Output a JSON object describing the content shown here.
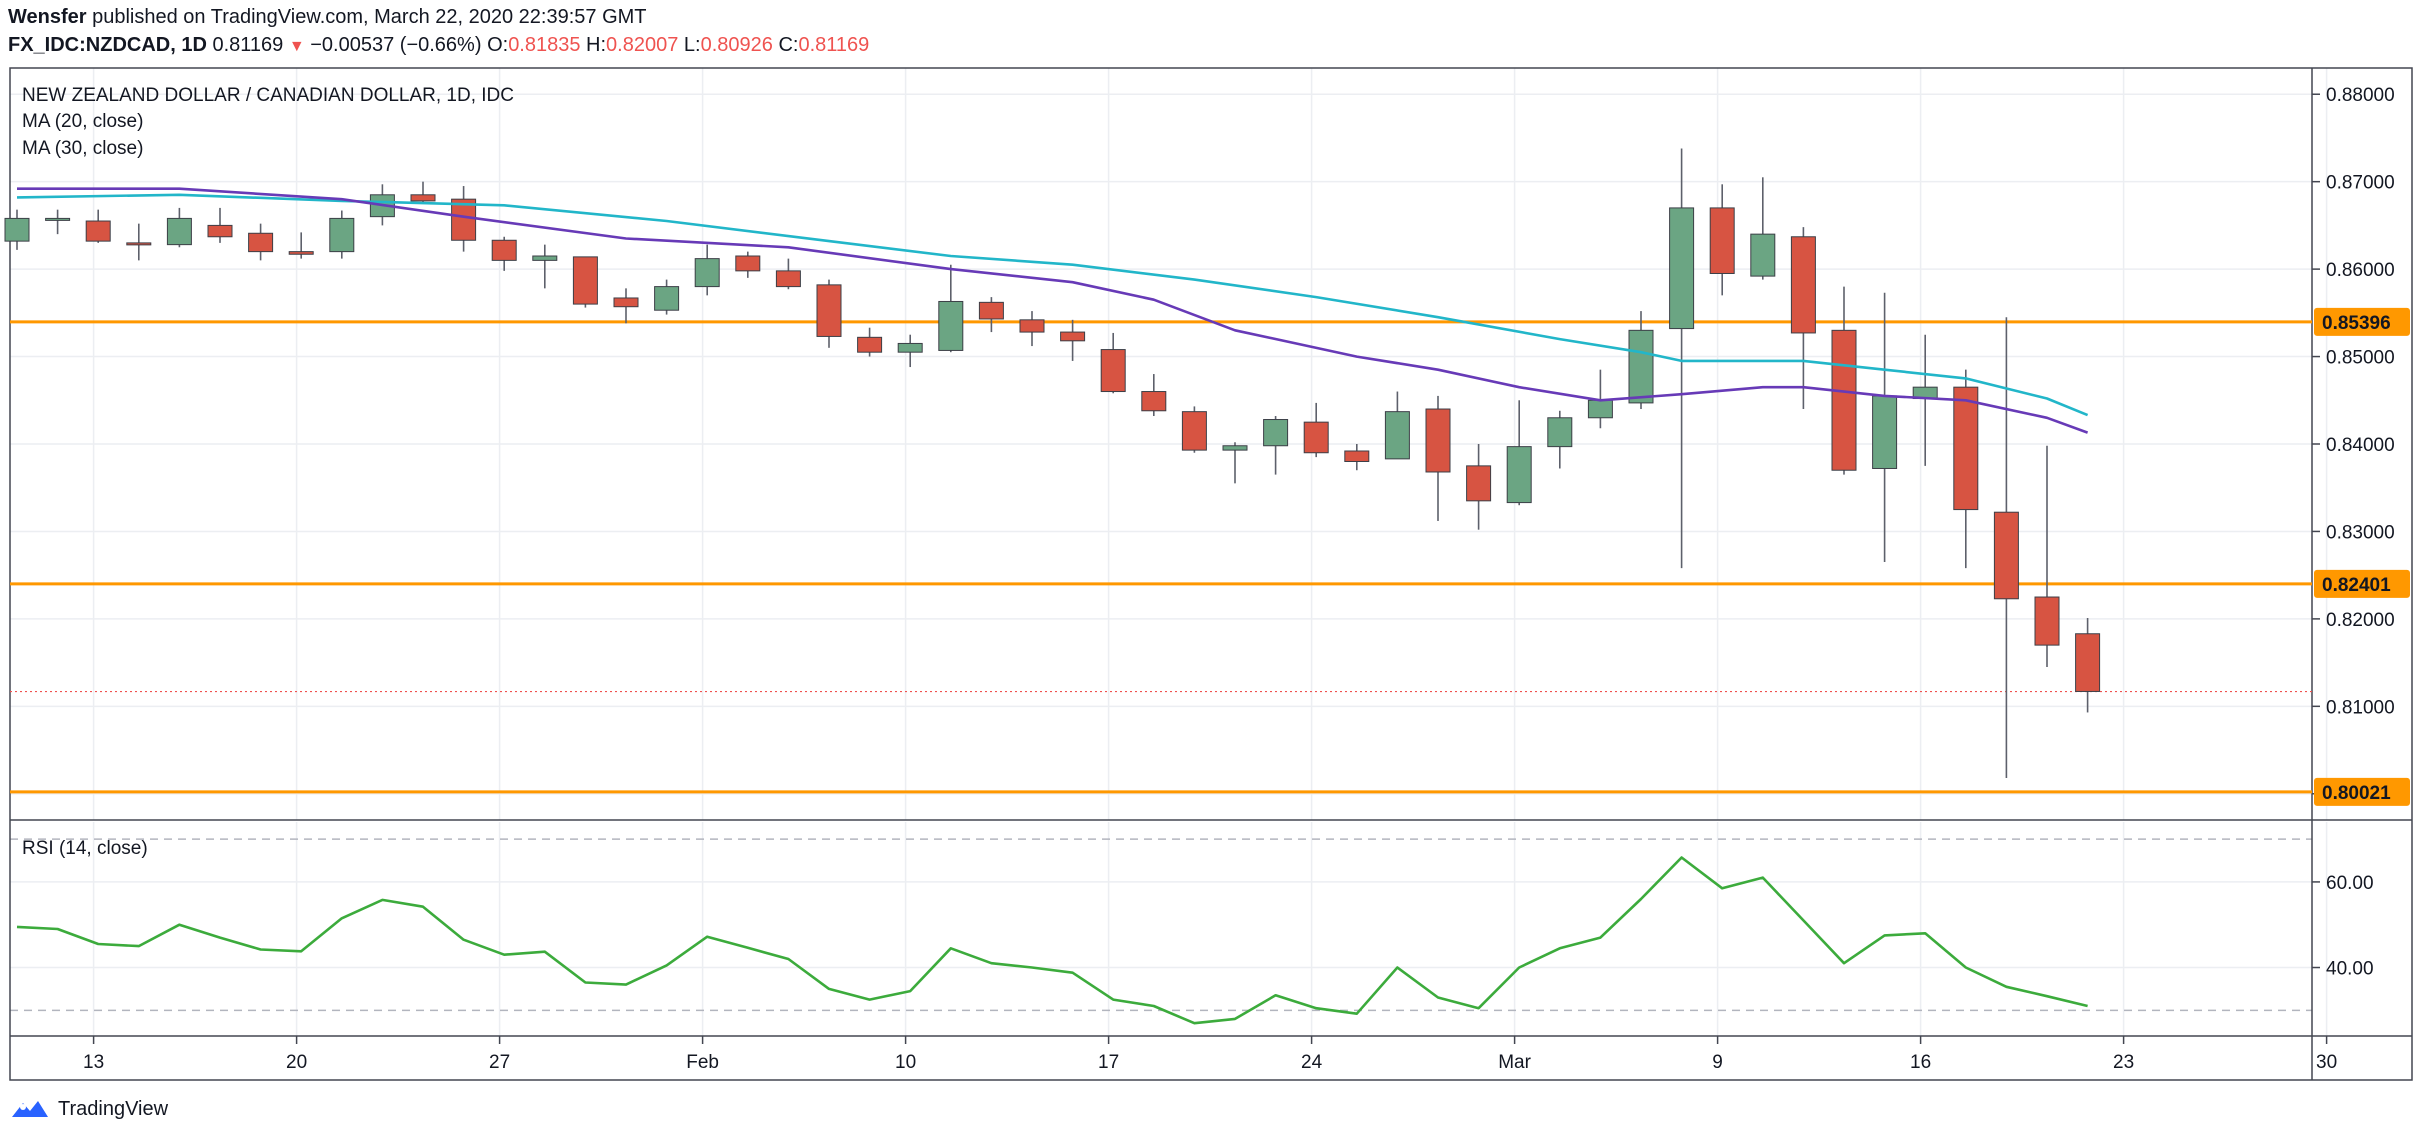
{
  "header": {
    "author": "Wensfer",
    "published_text": "published on TradingView.com, March 22, 2020 22:39:57 GMT",
    "symbol": "FX_IDC:NZDCAD, 1D",
    "last": "0.81169",
    "change": "−0.00537 (−0.66%)",
    "o_label": "O:",
    "o": "0.81835",
    "h_label": "H:",
    "h": "0.82007",
    "l_label": "L:",
    "l": "0.80926",
    "c_label": "C:",
    "c": "0.81169"
  },
  "legend": {
    "title": "NEW ZEALAND DOLLAR / CANADIAN DOLLAR, 1D, IDC",
    "ma20": "MA (20, close)",
    "ma30": "MA (30, close)",
    "rsi": "RSI (14, close)"
  },
  "footer": {
    "brand": "TradingView",
    "logo_icon": "tradingview-logo-icon"
  },
  "colors": {
    "up": "#6ba583",
    "down": "#d75442",
    "ma20": "#22b6c9",
    "ma30": "#673ab7",
    "rsi": "#3cab3c",
    "level": "#ff9800",
    "last": "#ef5350"
  },
  "chart_data": [
    {
      "type": "candlestick",
      "ylim": [
        0.797,
        0.883
      ],
      "y_ticks": [
        "0.80000",
        "0.81000",
        "0.82000",
        "0.83000",
        "0.84000",
        "0.85000",
        "0.86000",
        "0.87000",
        "0.88000"
      ],
      "x_ticks": [
        {
          "label": "13",
          "day": 1
        },
        {
          "label": "20",
          "day": 6
        },
        {
          "label": "27",
          "day": 11
        },
        {
          "label": "Feb",
          "day": 16
        },
        {
          "label": "10",
          "day": 21
        },
        {
          "label": "17",
          "day": 26
        },
        {
          "label": "24",
          "day": 31
        },
        {
          "label": "Mar",
          "day": 36
        },
        {
          "label": "9",
          "day": 41
        },
        {
          "label": "16",
          "day": 46
        },
        {
          "label": "23",
          "day": 51
        },
        {
          "label": "30",
          "day": 56
        }
      ],
      "levels": [
        {
          "value": 0.85396,
          "label": "0.85396"
        },
        {
          "value": 0.82401,
          "label": "0.82401"
        },
        {
          "value": 0.80021,
          "label": "0.80021"
        }
      ],
      "last_price": 0.81169,
      "candles": [
        {
          "d": 0,
          "o": 0.8632,
          "h": 0.8668,
          "l": 0.8622,
          "c": 0.8658
        },
        {
          "d": 1,
          "o": 0.8657,
          "h": 0.8668,
          "l": 0.864,
          "c": 0.8658
        },
        {
          "d": 2,
          "o": 0.8655,
          "h": 0.8668,
          "l": 0.863,
          "c": 0.8632
        },
        {
          "d": 3,
          "o": 0.863,
          "h": 0.8652,
          "l": 0.861,
          "c": 0.8628
        },
        {
          "d": 4,
          "o": 0.8628,
          "h": 0.867,
          "l": 0.8625,
          "c": 0.8658
        },
        {
          "d": 5,
          "o": 0.865,
          "h": 0.867,
          "l": 0.863,
          "c": 0.8637
        },
        {
          "d": 6,
          "o": 0.8641,
          "h": 0.8652,
          "l": 0.861,
          "c": 0.862
        },
        {
          "d": 7,
          "o": 0.862,
          "h": 0.8642,
          "l": 0.8612,
          "c": 0.8617
        },
        {
          "d": 8,
          "o": 0.862,
          "h": 0.8667,
          "l": 0.8612,
          "c": 0.8658
        },
        {
          "d": 9,
          "o": 0.866,
          "h": 0.8697,
          "l": 0.865,
          "c": 0.8685
        },
        {
          "d": 10,
          "o": 0.8685,
          "h": 0.87,
          "l": 0.8676,
          "c": 0.8678
        },
        {
          "d": 11,
          "o": 0.868,
          "h": 0.8695,
          "l": 0.862,
          "c": 0.8633
        },
        {
          "d": 12,
          "o": 0.8633,
          "h": 0.8637,
          "l": 0.8598,
          "c": 0.861
        },
        {
          "d": 13,
          "o": 0.861,
          "h": 0.8628,
          "l": 0.8578,
          "c": 0.8615
        },
        {
          "d": 14,
          "o": 0.8614,
          "h": 0.8614,
          "l": 0.8556,
          "c": 0.856
        },
        {
          "d": 15,
          "o": 0.8567,
          "h": 0.8578,
          "l": 0.8538,
          "c": 0.8557
        },
        {
          "d": 16,
          "o": 0.8553,
          "h": 0.8588,
          "l": 0.8548,
          "c": 0.858
        },
        {
          "d": 17,
          "o": 0.858,
          "h": 0.8628,
          "l": 0.857,
          "c": 0.8612
        },
        {
          "d": 18,
          "o": 0.8615,
          "h": 0.862,
          "l": 0.859,
          "c": 0.8598
        },
        {
          "d": 19,
          "o": 0.8598,
          "h": 0.8612,
          "l": 0.8577,
          "c": 0.858
        },
        {
          "d": 20,
          "o": 0.8582,
          "h": 0.8588,
          "l": 0.851,
          "c": 0.8523
        },
        {
          "d": 21,
          "o": 0.8522,
          "h": 0.8533,
          "l": 0.85,
          "c": 0.8505
        },
        {
          "d": 22,
          "o": 0.8505,
          "h": 0.8525,
          "l": 0.8488,
          "c": 0.8515
        },
        {
          "d": 23,
          "o": 0.8507,
          "h": 0.8605,
          "l": 0.8505,
          "c": 0.8563
        },
        {
          "d": 24,
          "o": 0.8562,
          "h": 0.8568,
          "l": 0.8528,
          "c": 0.8543
        },
        {
          "d": 25,
          "o": 0.8542,
          "h": 0.8552,
          "l": 0.8512,
          "c": 0.8528
        },
        {
          "d": 26,
          "o": 0.8528,
          "h": 0.8542,
          "l": 0.8495,
          "c": 0.8518
        },
        {
          "d": 27,
          "o": 0.8508,
          "h": 0.8527,
          "l": 0.8458,
          "c": 0.846
        },
        {
          "d": 28,
          "o": 0.846,
          "h": 0.848,
          "l": 0.8432,
          "c": 0.8438
        },
        {
          "d": 29,
          "o": 0.8437,
          "h": 0.8443,
          "l": 0.839,
          "c": 0.8393
        },
        {
          "d": 30,
          "o": 0.8393,
          "h": 0.8402,
          "l": 0.8355,
          "c": 0.8398
        },
        {
          "d": 31,
          "o": 0.8398,
          "h": 0.8432,
          "l": 0.8365,
          "c": 0.8428
        },
        {
          "d": 32,
          "o": 0.8425,
          "h": 0.8447,
          "l": 0.8385,
          "c": 0.839
        },
        {
          "d": 33,
          "o": 0.8392,
          "h": 0.84,
          "l": 0.837,
          "c": 0.838
        },
        {
          "d": 34,
          "o": 0.8383,
          "h": 0.846,
          "l": 0.8383,
          "c": 0.8437
        },
        {
          "d": 35,
          "o": 0.844,
          "h": 0.8455,
          "l": 0.8312,
          "c": 0.8368
        },
        {
          "d": 36,
          "o": 0.8375,
          "h": 0.84,
          "l": 0.8302,
          "c": 0.8335
        },
        {
          "d": 37,
          "o": 0.8333,
          "h": 0.845,
          "l": 0.833,
          "c": 0.8397
        },
        {
          "d": 38,
          "o": 0.8397,
          "h": 0.8438,
          "l": 0.8372,
          "c": 0.843
        },
        {
          "d": 39,
          "o": 0.843,
          "h": 0.8485,
          "l": 0.8418,
          "c": 0.845
        },
        {
          "d": 40,
          "o": 0.8447,
          "h": 0.8552,
          "l": 0.844,
          "c": 0.853
        },
        {
          "d": 41,
          "o": 0.8532,
          "h": 0.8738,
          "l": 0.8258,
          "c": 0.867
        },
        {
          "d": 42,
          "o": 0.867,
          "h": 0.8697,
          "l": 0.857,
          "c": 0.8595
        },
        {
          "d": 43,
          "o": 0.8592,
          "h": 0.8705,
          "l": 0.8588,
          "c": 0.864
        },
        {
          "d": 44,
          "o": 0.8637,
          "h": 0.8648,
          "l": 0.844,
          "c": 0.8527
        },
        {
          "d": 45,
          "o": 0.853,
          "h": 0.858,
          "l": 0.8365,
          "c": 0.837
        },
        {
          "d": 46,
          "o": 0.8372,
          "h": 0.8573,
          "l": 0.8265,
          "c": 0.8455
        },
        {
          "d": 47,
          "o": 0.8452,
          "h": 0.8525,
          "l": 0.8375,
          "c": 0.8465
        },
        {
          "d": 48,
          "o": 0.8465,
          "h": 0.8485,
          "l": 0.8258,
          "c": 0.8325
        },
        {
          "d": 49,
          "o": 0.8322,
          "h": 0.8545,
          "l": 0.8018,
          "c": 0.8223
        },
        {
          "d": 50,
          "o": 0.8225,
          "h": 0.8398,
          "l": 0.8145,
          "c": 0.817
        },
        {
          "d": 51,
          "o": 0.8183,
          "h": 0.8201,
          "l": 0.8093,
          "c": 0.8117
        }
      ],
      "ma20": [
        {
          "d": 0,
          "v": 0.8682
        },
        {
          "d": 4,
          "v": 0.8685
        },
        {
          "d": 8,
          "v": 0.8678
        },
        {
          "d": 12,
          "v": 0.8673
        },
        {
          "d": 16,
          "v": 0.8655
        },
        {
          "d": 20,
          "v": 0.8632
        },
        {
          "d": 23,
          "v": 0.8615
        },
        {
          "d": 26,
          "v": 0.8605
        },
        {
          "d": 29,
          "v": 0.8588
        },
        {
          "d": 32,
          "v": 0.8568
        },
        {
          "d": 35,
          "v": 0.8545
        },
        {
          "d": 38,
          "v": 0.852
        },
        {
          "d": 40,
          "v": 0.8505
        },
        {
          "d": 41,
          "v": 0.8495
        },
        {
          "d": 44,
          "v": 0.8495
        },
        {
          "d": 46,
          "v": 0.8485
        },
        {
          "d": 48,
          "v": 0.8475
        },
        {
          "d": 50,
          "v": 0.8452
        },
        {
          "d": 51,
          "v": 0.8433
        }
      ],
      "ma30": [
        {
          "d": 0,
          "v": 0.8692
        },
        {
          "d": 4,
          "v": 0.8692
        },
        {
          "d": 8,
          "v": 0.868
        },
        {
          "d": 11,
          "v": 0.866
        },
        {
          "d": 15,
          "v": 0.8635
        },
        {
          "d": 19,
          "v": 0.8625
        },
        {
          "d": 23,
          "v": 0.86
        },
        {
          "d": 26,
          "v": 0.8585
        },
        {
          "d": 28,
          "v": 0.8565
        },
        {
          "d": 30,
          "v": 0.853
        },
        {
          "d": 33,
          "v": 0.85
        },
        {
          "d": 35,
          "v": 0.8485
        },
        {
          "d": 37,
          "v": 0.8465
        },
        {
          "d": 39,
          "v": 0.845
        },
        {
          "d": 41,
          "v": 0.8457
        },
        {
          "d": 43,
          "v": 0.8465
        },
        {
          "d": 44,
          "v": 0.8465
        },
        {
          "d": 46,
          "v": 0.8455
        },
        {
          "d": 48,
          "v": 0.845
        },
        {
          "d": 50,
          "v": 0.843
        },
        {
          "d": 51,
          "v": 0.8413
        }
      ]
    },
    {
      "type": "line",
      "name": "",
      "ylim": [
        24,
        74
      ],
      "y_ticks": [
        "40.00",
        "60.00"
      ],
      "bands": [
        70,
        30
      ],
      "points": [
        {
          "d": 0,
          "v": 49.5
        },
        {
          "d": 1,
          "v": 49.0
        },
        {
          "d": 2,
          "v": 45.5
        },
        {
          "d": 3,
          "v": 45.0
        },
        {
          "d": 4,
          "v": 50.0
        },
        {
          "d": 5,
          "v": 47.0
        },
        {
          "d": 6,
          "v": 44.2
        },
        {
          "d": 7,
          "v": 43.8
        },
        {
          "d": 8,
          "v": 51.5
        },
        {
          "d": 9,
          "v": 55.8
        },
        {
          "d": 10,
          "v": 54.2
        },
        {
          "d": 11,
          "v": 46.5
        },
        {
          "d": 12,
          "v": 43.0
        },
        {
          "d": 13,
          "v": 43.7
        },
        {
          "d": 14,
          "v": 36.5
        },
        {
          "d": 15,
          "v": 36.0
        },
        {
          "d": 16,
          "v": 40.5
        },
        {
          "d": 17,
          "v": 47.2
        },
        {
          "d": 18,
          "v": 44.6
        },
        {
          "d": 19,
          "v": 42.0
        },
        {
          "d": 20,
          "v": 35.0
        },
        {
          "d": 21,
          "v": 32.5
        },
        {
          "d": 22,
          "v": 34.5
        },
        {
          "d": 23,
          "v": 44.5
        },
        {
          "d": 24,
          "v": 41.0
        },
        {
          "d": 25,
          "v": 40.0
        },
        {
          "d": 26,
          "v": 38.8
        },
        {
          "d": 27,
          "v": 32.5
        },
        {
          "d": 28,
          "v": 31.0
        },
        {
          "d": 29,
          "v": 27.0
        },
        {
          "d": 30,
          "v": 28.0
        },
        {
          "d": 31,
          "v": 33.5
        },
        {
          "d": 32,
          "v": 30.5
        },
        {
          "d": 33,
          "v": 29.2
        },
        {
          "d": 34,
          "v": 40.0
        },
        {
          "d": 35,
          "v": 33.0
        },
        {
          "d": 36,
          "v": 30.5
        },
        {
          "d": 37,
          "v": 40.0
        },
        {
          "d": 38,
          "v": 44.5
        },
        {
          "d": 39,
          "v": 47.0
        },
        {
          "d": 40,
          "v": 56.0
        },
        {
          "d": 41,
          "v": 65.7
        },
        {
          "d": 42,
          "v": 58.5
        },
        {
          "d": 43,
          "v": 61.0
        },
        {
          "d": 44,
          "v": 51.0
        },
        {
          "d": 45,
          "v": 41.0
        },
        {
          "d": 46,
          "v": 47.5
        },
        {
          "d": 47,
          "v": 48.0
        },
        {
          "d": 48,
          "v": 40.0
        },
        {
          "d": 49,
          "v": 35.5
        },
        {
          "d": 50,
          "v": 33.3
        },
        {
          "d": 51,
          "v": 31.0
        }
      ]
    }
  ]
}
